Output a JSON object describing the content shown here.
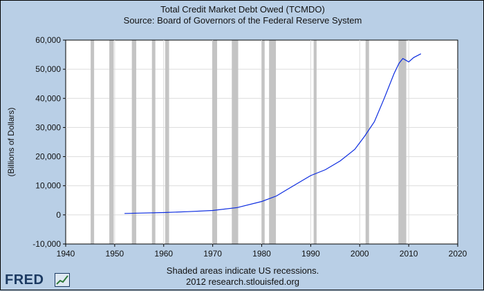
{
  "chart_data": {
    "type": "line",
    "title": "Total Credit Market Debt Owed (TCMDO)",
    "subtitle": "Source: Board of Governors of the Federal Reserve System",
    "xlabel": "",
    "ylabel": "(Billions of Dollars)",
    "xlim": [
      1940,
      2020
    ],
    "ylim": [
      -10000,
      60000
    ],
    "x_ticks": [
      1940,
      1950,
      1960,
      1970,
      1980,
      1990,
      2000,
      2010,
      2020
    ],
    "y_ticks": [
      -10000,
      0,
      10000,
      20000,
      30000,
      40000,
      50000,
      60000
    ],
    "x_tick_labels": [
      "1940",
      "1950",
      "1960",
      "1970",
      "1980",
      "1990",
      "2000",
      "2010",
      "2020"
    ],
    "y_tick_labels": [
      "-10,000",
      "0",
      "10,000",
      "20,000",
      "30,000",
      "40,000",
      "50,000",
      "60,000"
    ],
    "grid": true,
    "line_color": "#0b2be0",
    "recession_color": "#c4c4c4",
    "recessions": [
      [
        1945.1,
        1945.8
      ],
      [
        1948.9,
        1949.8
      ],
      [
        1953.5,
        1954.4
      ],
      [
        1957.6,
        1958.3
      ],
      [
        1960.3,
        1961.1
      ],
      [
        1969.9,
        1970.9
      ],
      [
        1973.9,
        1975.2
      ],
      [
        1980.0,
        1980.6
      ],
      [
        1981.5,
        1982.9
      ],
      [
        1990.6,
        1991.2
      ],
      [
        2001.2,
        2001.9
      ],
      [
        2007.9,
        2009.5
      ]
    ],
    "series": [
      {
        "x": [
          1952,
          1955,
          1960,
          1965,
          1970,
          1975,
          1980,
          1983,
          1985,
          1988,
          1990,
          1993,
          1996,
          1999,
          2001,
          2003,
          2005,
          2007,
          2008,
          2008.8,
          2009.3,
          2010,
          2011,
          2012.5
        ],
        "y": [
          500,
          600,
          800,
          1100,
          1500,
          2500,
          4600,
          6500,
          8500,
          11500,
          13500,
          15500,
          18500,
          22500,
          27000,
          32000,
          40000,
          48500,
          52000,
          53700,
          53200,
          52500,
          54000,
          55300
        ]
      }
    ]
  },
  "footer": {
    "note": "Shaded areas indicate US recessions.",
    "credit": "2012 research.stlouisfed.org",
    "logo": "FRED"
  }
}
